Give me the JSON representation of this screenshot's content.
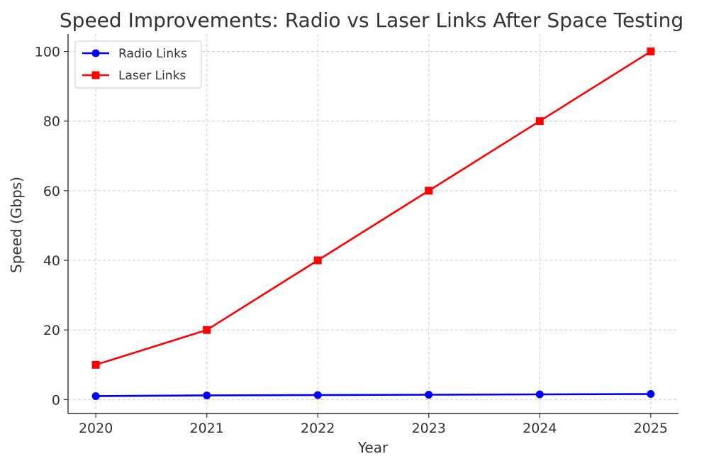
{
  "chart_data": {
    "type": "line",
    "title": "Speed Improvements: Radio vs Laser Links After Space Testing",
    "xlabel": "Year",
    "ylabel": "Speed (Gbps)",
    "x": [
      2020,
      2021,
      2022,
      2023,
      2024,
      2025
    ],
    "x_tick_labels": [
      "2020",
      "2021",
      "2022",
      "2023",
      "2024",
      "2025"
    ],
    "y_ticks": [
      0,
      20,
      40,
      60,
      80,
      100
    ],
    "y_tick_labels": [
      "0",
      "20",
      "40",
      "60",
      "80",
      "100"
    ],
    "ylim": [
      -4,
      105
    ],
    "xlim": [
      2019.75,
      2025.25
    ],
    "grid": true,
    "legend_position": "upper-left",
    "series": [
      {
        "name": "Radio Links",
        "color": "#0000ff",
        "marker": "circle",
        "values": [
          1.0,
          1.2,
          1.3,
          1.4,
          1.5,
          1.6
        ]
      },
      {
        "name": "Laser Links",
        "color": "#ff0000",
        "marker": "square",
        "values": [
          10,
          20,
          40,
          60,
          80,
          100
        ]
      }
    ]
  }
}
